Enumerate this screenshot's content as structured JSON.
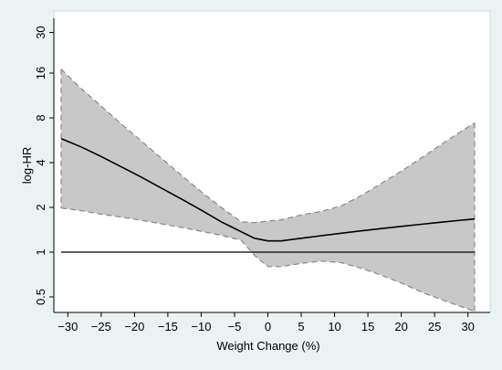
{
  "chart_data": {
    "type": "line",
    "title": "",
    "xlabel": "Weight Change (%)",
    "ylabel": "log-HR",
    "xlim": [
      -32,
      32
    ],
    "ylim": [
      0.4,
      32
    ],
    "y_scale": "log",
    "x_ticks": [
      -30,
      -25,
      -20,
      -15,
      -10,
      -5,
      0,
      5,
      10,
      15,
      20,
      25,
      30
    ],
    "x_tick_labels": [
      "−30",
      "−25",
      "−20",
      "−15",
      "−10",
      "−5",
      "0",
      "5",
      "10",
      "15",
      "20",
      "25",
      "30"
    ],
    "y_ticks": [
      0.5,
      1,
      2,
      4,
      8,
      16,
      30
    ],
    "y_tick_labels": [
      "0.5",
      "1",
      "2",
      "4",
      "8",
      "16",
      "30"
    ],
    "reference_line_y": 1,
    "grid": false,
    "colors": {
      "background": "#eaf2f3",
      "plot_area": "#ffffff",
      "band_fill": "#c8c8c8",
      "band_border": "#888888",
      "line": "#000000"
    },
    "series": [
      {
        "x": [
          -31,
          -28,
          -25,
          -22,
          -19,
          -16,
          -13,
          -10,
          -7,
          -4,
          -2,
          0,
          2,
          5,
          8,
          11,
          14,
          17,
          20,
          23,
          26,
          29,
          31
        ],
        "values": [
          5.8,
          5.1,
          4.4,
          3.75,
          3.2,
          2.7,
          2.28,
          1.92,
          1.6,
          1.37,
          1.24,
          1.19,
          1.19,
          1.24,
          1.29,
          1.34,
          1.39,
          1.44,
          1.49,
          1.54,
          1.59,
          1.64,
          1.67
        ]
      }
    ],
    "bands": [
      {
        "x": [
          -31,
          -28,
          -25,
          -22,
          -19,
          -16,
          -13,
          -10,
          -7,
          -4,
          -2,
          0,
          2,
          5,
          8,
          11,
          14,
          17,
          20,
          23,
          26,
          29,
          31
        ],
        "lower": [
          1.98,
          1.9,
          1.8,
          1.72,
          1.64,
          1.55,
          1.47,
          1.38,
          1.3,
          1.2,
          0.95,
          0.8,
          0.8,
          0.84,
          0.87,
          0.85,
          0.78,
          0.7,
          0.62,
          0.54,
          0.48,
          0.43,
          0.4
        ],
        "upper": [
          17.0,
          12.6,
          9.6,
          7.3,
          5.6,
          4.3,
          3.3,
          2.55,
          2.0,
          1.6,
          1.58,
          1.62,
          1.65,
          1.78,
          1.88,
          2.05,
          2.4,
          2.9,
          3.5,
          4.3,
          5.3,
          6.5,
          7.4
        ]
      }
    ]
  }
}
